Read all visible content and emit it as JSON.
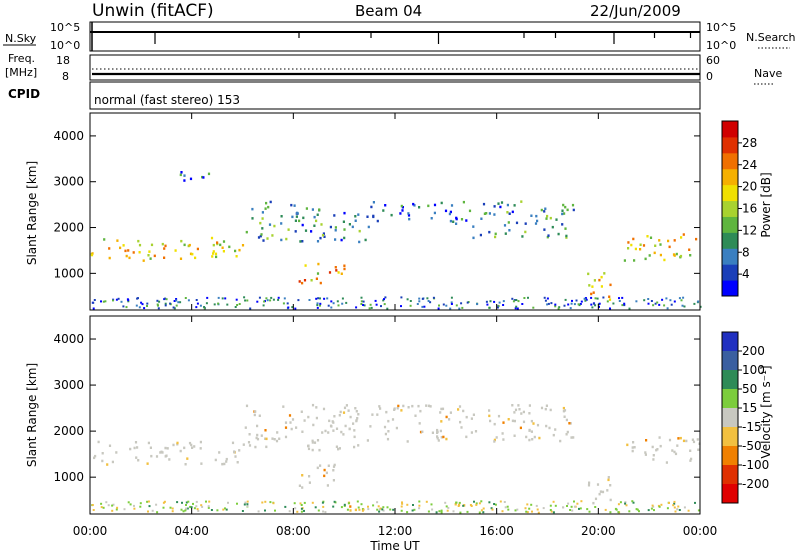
{
  "header": {
    "station": "Unwin (fitACF)",
    "beam": "Beam 04",
    "date": "22/Jun/2009"
  },
  "top_panels": {
    "nsky_label": "N.Sky",
    "nsky_ticks": [
      "10^5",
      "10^0"
    ],
    "nsearch_label": "N.Search",
    "freq_label_1": "Freq.",
    "freq_label_2": "[MHz]",
    "freq_ticks": [
      "18",
      "8"
    ],
    "nave_ticks": [
      "60",
      "0"
    ],
    "nave_label": "Nave",
    "cpid_label": "CPID",
    "cpid_text": "normal (fast stereo) 153"
  },
  "chart_data": [
    {
      "type": "heatmap",
      "name": "power",
      "ylabel": "Slant Range [km]",
      "xlabel": "Time UT",
      "x_ticks": [
        "00:00",
        "04:00",
        "08:00",
        "12:00",
        "16:00",
        "20:00",
        "00:00"
      ],
      "y_ticks": [
        1000,
        2000,
        3000,
        4000
      ],
      "ylim": [
        200,
        4500
      ],
      "colorbar": {
        "label": "Power [dB]",
        "ticks": [
          "4",
          "8",
          "12",
          "16",
          "20",
          "24",
          "28"
        ],
        "range": [
          0,
          30
        ]
      },
      "colors": [
        "#0000ff",
        "#1a3fb8",
        "#3a7fc0",
        "#2e8b57",
        "#5fb53f",
        "#a8d230",
        "#f0e000",
        "#f5b000",
        "#f07000",
        "#e03000",
        "#d00000"
      ],
      "echo_regions": [
        {
          "t": [
            0,
            6
          ],
          "r": [
            1300,
            1800
          ],
          "level": 18
        },
        {
          "t": [
            6,
            9
          ],
          "r": [
            1700,
            2600
          ],
          "level": 8
        },
        {
          "t": [
            8.2,
            10
          ],
          "r": [
            800,
            1300
          ],
          "level": 20
        },
        {
          "t": [
            9,
            11
          ],
          "r": [
            1700,
            2400
          ],
          "level": 8
        },
        {
          "t": [
            11,
            15
          ],
          "r": [
            2100,
            2600
          ],
          "level": 6
        },
        {
          "t": [
            15,
            19
          ],
          "r": [
            1800,
            2600
          ],
          "level": 7
        },
        {
          "t": [
            19.5,
            20.5
          ],
          "r": [
            400,
            1100
          ],
          "level": 22
        },
        {
          "t": [
            21,
            24
          ],
          "r": [
            1300,
            1900
          ],
          "level": 18
        },
        {
          "t": [
            3.5,
            5
          ],
          "r": [
            3000,
            3300
          ],
          "level": 6
        }
      ]
    },
    {
      "type": "heatmap",
      "name": "velocity",
      "ylabel": "Slant Range [km]",
      "xlabel": "Time UT",
      "x_ticks": [
        "00:00",
        "04:00",
        "08:00",
        "12:00",
        "16:00",
        "20:00",
        "00:00"
      ],
      "y_ticks": [
        1000,
        2000,
        3000,
        4000
      ],
      "ylim": [
        200,
        4500
      ],
      "colorbar": {
        "label": "Velocity [m s⁻¹]",
        "ticks": [
          "200",
          "100",
          "50",
          "15",
          "-15",
          "-50",
          "-100",
          "-200"
        ]
      },
      "colors": [
        "#2030c0",
        "#3a5fa0",
        "#2e8b57",
        "#7ccd3c",
        "#c8c8c0",
        "#f2c040",
        "#f08000",
        "#e03000",
        "#e00000"
      ],
      "echo_regions": [
        {
          "t": [
            0,
            6
          ],
          "r": [
            1300,
            1800
          ],
          "class": "-15..15"
        },
        {
          "t": [
            6,
            11
          ],
          "r": [
            1600,
            2600
          ],
          "class": "-15..15"
        },
        {
          "t": [
            8.2,
            10
          ],
          "r": [
            800,
            1300
          ],
          "class": "-15..15"
        },
        {
          "t": [
            11,
            19
          ],
          "r": [
            1800,
            2600
          ],
          "class": "-15..15"
        },
        {
          "t": [
            19.5,
            20.5
          ],
          "r": [
            400,
            1100
          ],
          "class": "-15..15"
        },
        {
          "t": [
            21,
            24
          ],
          "r": [
            1300,
            1900
          ],
          "class": "-15..15"
        },
        {
          "t": [
            9.5,
            10.5
          ],
          "r": [
            300,
            500
          ],
          "class": "-50..-15"
        },
        {
          "t": [
            14,
            15
          ],
          "r": [
            300,
            450
          ],
          "class": "-50..-15"
        }
      ]
    }
  ]
}
